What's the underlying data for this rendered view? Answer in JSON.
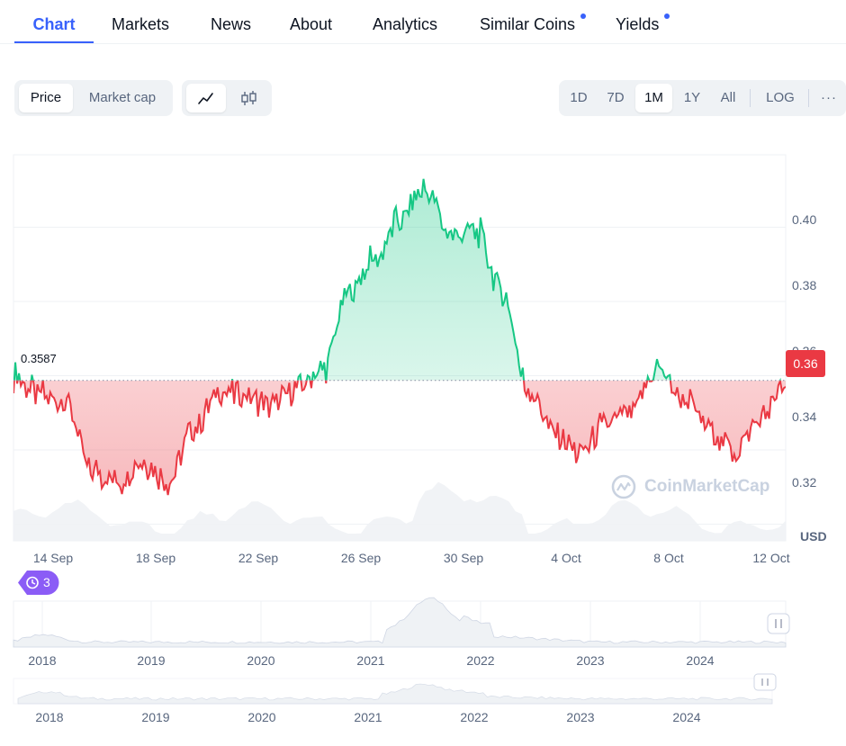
{
  "tabs": [
    {
      "label": "Chart",
      "active": true,
      "dot": false
    },
    {
      "label": "Markets",
      "active": false,
      "dot": false
    },
    {
      "label": "News",
      "active": false,
      "dot": false
    },
    {
      "label": "About",
      "active": false,
      "dot": false
    },
    {
      "label": "Analytics",
      "active": false,
      "dot": false
    },
    {
      "label": "Similar Coins",
      "active": false,
      "dot": true
    },
    {
      "label": "Yields",
      "active": false,
      "dot": true
    }
  ],
  "toolbar": {
    "price_label": "Price",
    "marketcap_label": "Market cap",
    "line_icon": "line-chart-icon",
    "candle_icon": "candlestick-icon",
    "ranges": [
      "1D",
      "7D",
      "1M",
      "1Y",
      "All"
    ],
    "selected_range": "1M",
    "log_label": "LOG",
    "more_label": "···"
  },
  "chart_data": {
    "type": "line",
    "reference_value": 0.3587,
    "reference_label": "0.3587",
    "current_label": "0.36",
    "currency_label": "USD",
    "watermark": "CoinMarketCap",
    "y_ticks": [
      0.4,
      0.38,
      0.36,
      0.34,
      0.32
    ],
    "y_tick_labels": [
      "0.40",
      "0.38",
      "0.36",
      "0.34",
      "0.32"
    ],
    "ylim": [
      0.3155,
      0.4195
    ],
    "x_labels": [
      "14 Sep",
      "18 Sep",
      "22 Sep",
      "26 Sep",
      "30 Sep",
      "4 Oct",
      "8 Oct",
      "12 Oct"
    ],
    "x": [
      "2024-09-13",
      "2024-09-14",
      "2024-09-15",
      "2024-09-16",
      "2024-09-17",
      "2024-09-18",
      "2024-09-19",
      "2024-09-20",
      "2024-09-21",
      "2024-09-22",
      "2024-09-23",
      "2024-09-24",
      "2024-09-25",
      "2024-09-26",
      "2024-09-27",
      "2024-09-28",
      "2024-09-29",
      "2024-09-30",
      "2024-10-01",
      "2024-10-02",
      "2024-10-03",
      "2024-10-04",
      "2024-10-05",
      "2024-10-06",
      "2024-10-07",
      "2024-10-08",
      "2024-10-09",
      "2024-10-10",
      "2024-10-11",
      "2024-10-12",
      "2024-10-13"
    ],
    "values": [
      0.3595,
      0.355,
      0.354,
      0.335,
      0.331,
      0.337,
      0.331,
      0.346,
      0.355,
      0.355,
      0.352,
      0.356,
      0.361,
      0.382,
      0.391,
      0.402,
      0.41,
      0.398,
      0.399,
      0.382,
      0.356,
      0.345,
      0.339,
      0.347,
      0.35,
      0.362,
      0.354,
      0.346,
      0.34,
      0.348,
      0.357
    ],
    "peak_value": 0.413,
    "peak_date": "2024-09-28",
    "trough_value": 0.329,
    "trough_date": "2024-09-17"
  },
  "history_badge": "3",
  "overview": {
    "years1": [
      "2018",
      "2019",
      "2020",
      "2021",
      "2022",
      "2023",
      "2024"
    ],
    "years2": [
      "2018",
      "2019",
      "2020",
      "2021",
      "2022",
      "2023",
      "2024"
    ]
  },
  "colors": {
    "accent": "#3861fb",
    "up": "#16c784",
    "down": "#ea3943",
    "badge": "#8b5cf6"
  }
}
